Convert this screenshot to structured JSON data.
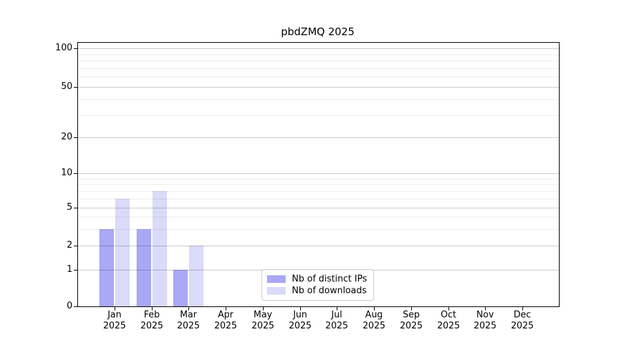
{
  "chart_data": {
    "type": "bar",
    "title": "pbdZMQ 2025",
    "categories": [
      "Jan",
      "Feb",
      "Mar",
      "Apr",
      "May",
      "Jun",
      "Jul",
      "Aug",
      "Sep",
      "Oct",
      "Nov",
      "Dec"
    ],
    "x_year_label": "2025",
    "series": [
      {
        "name": "Nb of distinct IPs",
        "color": "#a8a8f5",
        "values": [
          3,
          3,
          1,
          0,
          0,
          0,
          0,
          0,
          0,
          0,
          0,
          0
        ]
      },
      {
        "name": "Nb of downloads",
        "color": "#dadafa",
        "values": [
          6,
          7,
          2,
          0,
          0,
          0,
          0,
          0,
          0,
          0,
          0,
          0
        ]
      }
    ],
    "y_axis": {
      "scale": "log-like",
      "tick_values": [
        0,
        1,
        2,
        5,
        10,
        20,
        50,
        100
      ],
      "minor_gridline_values": [
        3,
        4,
        6,
        7,
        8,
        9,
        30,
        40,
        60,
        70,
        80,
        90
      ]
    },
    "legend": {
      "position": "bottom-center",
      "entries": [
        "Nb of distinct IPs",
        "Nb of downloads"
      ]
    },
    "grid": true
  },
  "colors": {
    "bar_distinct_ips": "#a8a8f5",
    "bar_downloads": "#dadafa",
    "axis_frame": "#000000",
    "major_gridline": "#cccccc",
    "minor_gridline": "#ededed",
    "background": "#ffffff"
  }
}
